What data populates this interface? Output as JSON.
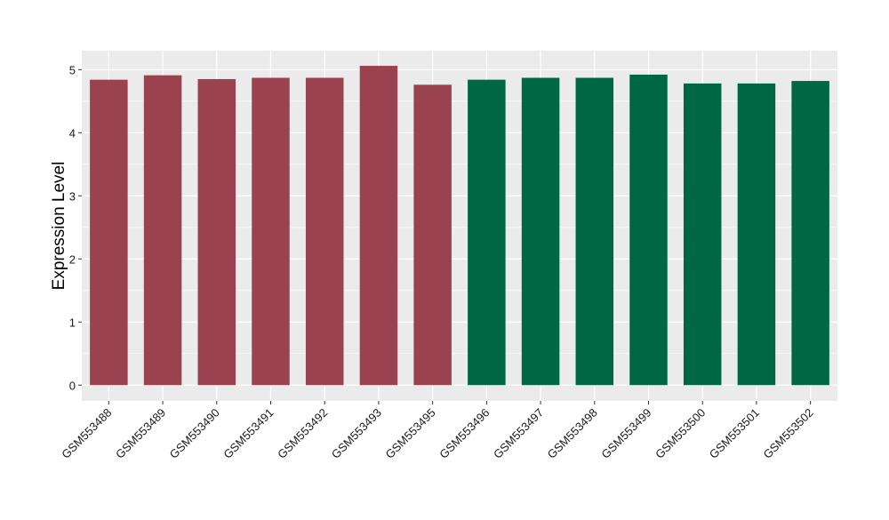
{
  "chart_data": {
    "type": "bar",
    "title": "",
    "xlabel": "",
    "ylabel": "Expression Level",
    "ylim": [
      -0.25,
      5.3
    ],
    "yticks": [
      0,
      1,
      2,
      3,
      4,
      5
    ],
    "grid": true,
    "legend": "none",
    "categories": [
      "GSM553488",
      "GSM553489",
      "GSM553490",
      "GSM553491",
      "GSM553492",
      "GSM553493",
      "GSM553495",
      "GSM553496",
      "GSM553497",
      "GSM553498",
      "GSM553499",
      "GSM553500",
      "GSM553501",
      "GSM553502"
    ],
    "values": [
      4.84,
      4.91,
      4.85,
      4.87,
      4.87,
      5.06,
      4.76,
      4.84,
      4.87,
      4.87,
      4.92,
      4.78,
      4.78,
      4.82
    ],
    "groups": [
      0,
      0,
      0,
      0,
      0,
      0,
      0,
      1,
      1,
      1,
      1,
      1,
      1,
      1
    ],
    "group_colors": [
      "#9A4250",
      "#006744"
    ],
    "panel_color": "#EBEBEB",
    "grid_color": "#FFFFFF"
  }
}
